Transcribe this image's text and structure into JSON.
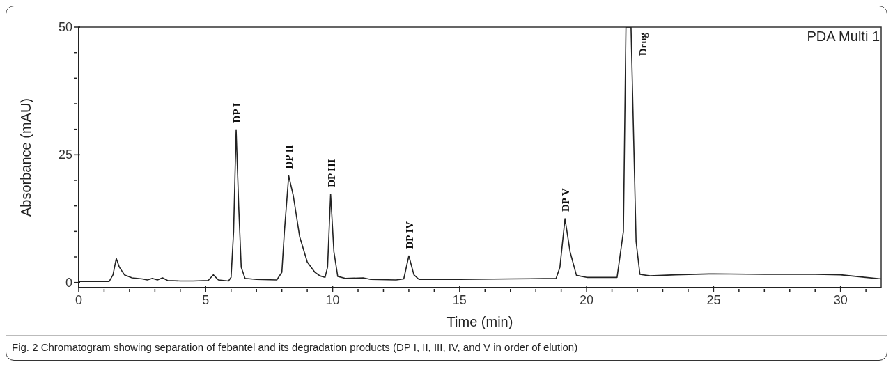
{
  "chart_data": {
    "type": "line",
    "xlabel": "Time (min)",
    "ylabel": "Absorbance (mAU)",
    "x": [
      0,
      1.2,
      1.35,
      1.48,
      1.6,
      1.8,
      2.1,
      2.5,
      2.7,
      2.9,
      3.1,
      3.3,
      3.5,
      4,
      4.5,
      5.1,
      5.3,
      5.5,
      5.9,
      6.0,
      6.1,
      6.2,
      6.3,
      6.4,
      6.55,
      7,
      7.8,
      8.0,
      8.1,
      8.27,
      8.45,
      8.7,
      9.0,
      9.3,
      9.5,
      9.7,
      9.8,
      9.92,
      10.05,
      10.2,
      10.5,
      11.2,
      11.5,
      12.5,
      12.8,
      13.0,
      13.2,
      13.4,
      15,
      17,
      18.8,
      18.95,
      19.15,
      19.35,
      19.6,
      20,
      21.2,
      21.45,
      21.55,
      21.75,
      21.95,
      22.1,
      22.5,
      23.5,
      25,
      27,
      29,
      30,
      31,
      31.6
    ],
    "series": [
      {
        "color": "#222222",
        "values": [
          0.2,
          0.2,
          1.5,
          4.7,
          3.0,
          1.5,
          0.9,
          0.7,
          0.5,
          0.8,
          0.5,
          0.9,
          0.4,
          0.3,
          0.3,
          0.4,
          1.5,
          0.5,
          0.3,
          1.0,
          10,
          29.9,
          15,
          3,
          0.8,
          0.6,
          0.5,
          2,
          10,
          20.9,
          17,
          9,
          4,
          2,
          1.3,
          1.0,
          3,
          17.3,
          6,
          1.2,
          0.8,
          0.9,
          0.6,
          0.5,
          0.7,
          5.2,
          1.5,
          0.6,
          0.6,
          0.7,
          0.8,
          3,
          12.5,
          6,
          1.4,
          1.0,
          1.0,
          10,
          50,
          50,
          8,
          1.6,
          1.3,
          1.5,
          1.7,
          1.6,
          1.6,
          1.5,
          1.0,
          0.7
        ]
      }
    ],
    "xlim": [
      0,
      31.6
    ],
    "xticks": [
      0,
      {
        "value": 1,
        "label": null
      },
      {
        "value": 2,
        "label": null
      },
      {
        "value": 3,
        "label": null
      },
      {
        "value": 4,
        "label": null
      },
      5,
      {
        "value": 6,
        "label": null
      },
      {
        "value": 7,
        "label": null
      },
      {
        "value": 8,
        "label": null
      },
      {
        "value": 9,
        "label": null
      },
      10,
      {
        "value": 11,
        "label": null
      },
      {
        "value": 12,
        "label": null
      },
      {
        "value": 13,
        "label": null
      },
      {
        "value": 14,
        "label": null
      },
      15,
      {
        "value": 16,
        "label": null
      },
      {
        "value": 17,
        "label": null
      },
      {
        "value": 18,
        "label": null
      },
      {
        "value": 19,
        "label": null
      },
      20,
      {
        "value": 21,
        "label": null
      },
      {
        "value": 22,
        "label": null
      },
      {
        "value": 23,
        "label": null
      },
      {
        "value": 24,
        "label": null
      },
      25,
      {
        "value": 26,
        "label": null
      },
      {
        "value": 27,
        "label": null
      },
      {
        "value": 28,
        "label": null
      },
      {
        "value": 29,
        "label": null
      },
      30,
      {
        "value": 31,
        "label": null
      }
    ],
    "ylim": [
      -1,
      50
    ],
    "yticks": [
      0,
      {
        "value": 5,
        "label": null
      },
      {
        "value": 10,
        "label": null
      },
      {
        "value": 15,
        "label": null
      },
      {
        "value": 20,
        "label": null
      },
      25,
      {
        "value": 30,
        "label": null
      },
      {
        "value": 35,
        "label": null
      },
      {
        "value": 40,
        "label": null
      },
      {
        "value": 45,
        "label": null
      },
      50
    ],
    "grid": false,
    "legend": false,
    "marker": "none",
    "line_style": "solid",
    "annotations": [
      "PDA Multi 1",
      {
        "text": "DP I",
        "x": 6.2,
        "y": 29.9
      },
      {
        "text": "DP II",
        "x": 8.27,
        "y": 20.9
      },
      {
        "text": "DP III",
        "x": 9.92,
        "y": 17.3
      },
      {
        "text": "DP IV",
        "x": 13.0,
        "y": 5.2
      },
      {
        "text": "DP V",
        "x": 19.15,
        "y": 12.5
      },
      {
        "text": "Drug",
        "x": 21.75,
        "y": 50
      },
      "Fig. 2 Chromatogram showing separation of febantel and its degradation products (DP I, II, III, IV, and V in order of elution)"
    ]
  }
}
